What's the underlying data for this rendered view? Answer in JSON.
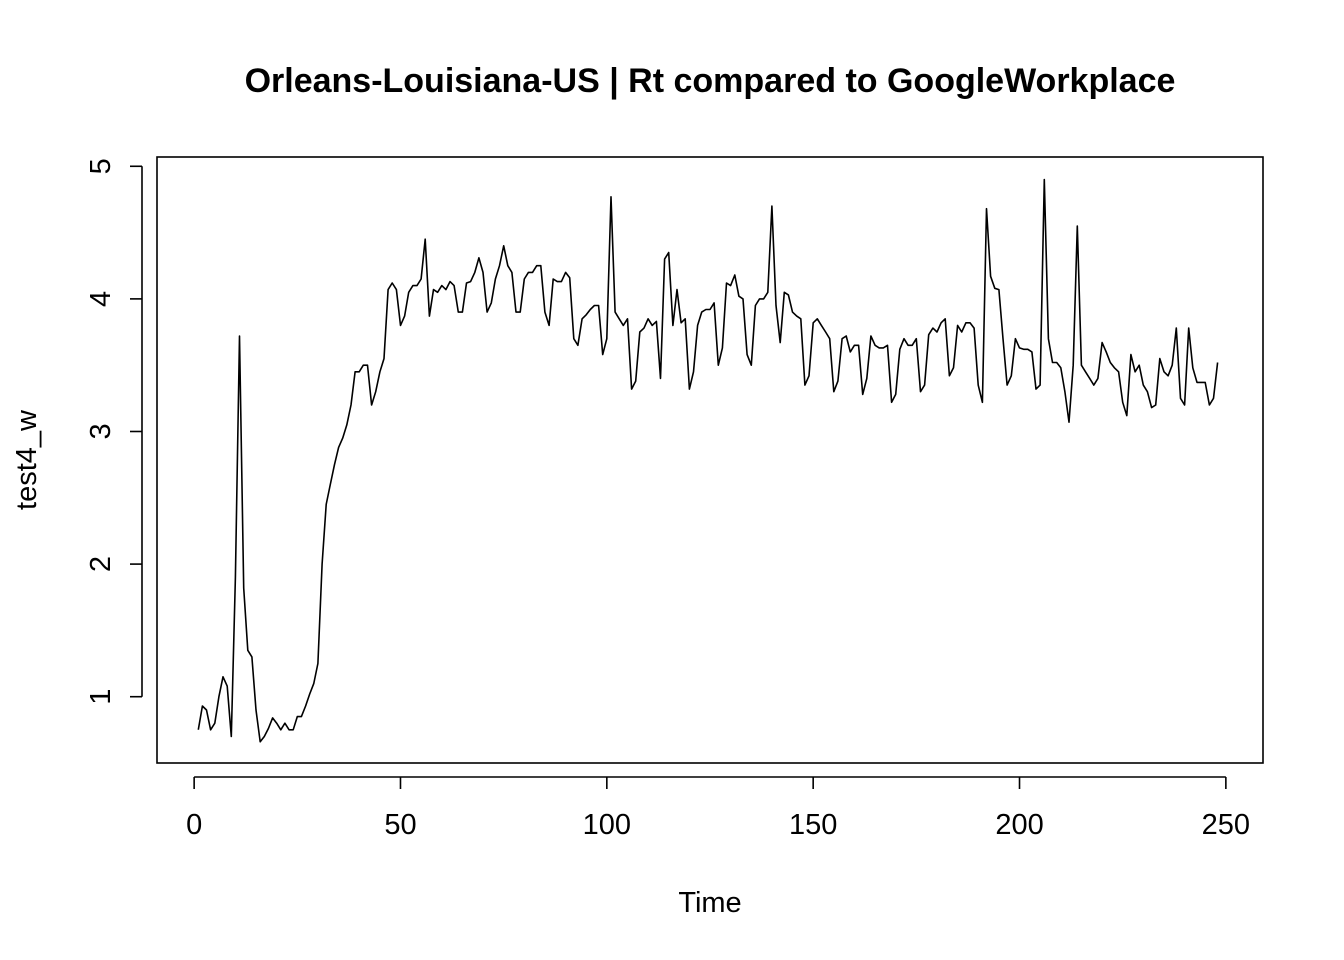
{
  "chart_data": {
    "type": "line",
    "title": "Orleans-Louisiana-US | Rt compared to GoogleWorkplace",
    "xlabel": "Time",
    "ylabel": "test4_w",
    "xlim": [
      -9,
      259
    ],
    "ylim": [
      0.5,
      5.07
    ],
    "xticks": [
      0,
      50,
      100,
      150,
      200,
      250
    ],
    "yticks": [
      1,
      2,
      3,
      4,
      5
    ],
    "grid": false,
    "legend": "none",
    "series": [
      {
        "color": "#000000",
        "x": [
          1,
          2,
          3,
          4,
          5,
          6,
          7,
          8,
          9,
          10,
          11,
          12,
          13,
          14,
          15,
          16,
          17,
          18,
          19,
          20,
          21,
          22,
          23,
          24,
          25,
          26,
          27,
          28,
          29,
          30,
          31,
          32,
          33,
          34,
          35,
          36,
          37,
          38,
          39,
          40,
          41,
          42,
          43,
          44,
          45,
          46,
          47,
          48,
          49,
          50,
          51,
          52,
          53,
          54,
          55,
          56,
          57,
          58,
          59,
          60,
          61,
          62,
          63,
          64,
          65,
          66,
          67,
          68,
          69,
          70,
          71,
          72,
          73,
          74,
          75,
          76,
          77,
          78,
          79,
          80,
          81,
          82,
          83,
          84,
          85,
          86,
          87,
          88,
          89,
          90,
          91,
          92,
          93,
          94,
          95,
          96,
          97,
          98,
          99,
          100,
          101,
          102,
          103,
          104,
          105,
          106,
          107,
          108,
          109,
          110,
          111,
          112,
          113,
          114,
          115,
          116,
          117,
          118,
          119,
          120,
          121,
          122,
          123,
          124,
          125,
          126,
          127,
          128,
          129,
          130,
          131,
          132,
          133,
          134,
          135,
          136,
          137,
          138,
          139,
          140,
          141,
          142,
          143,
          144,
          145,
          146,
          147,
          148,
          149,
          150,
          151,
          152,
          153,
          154,
          155,
          156,
          157,
          158,
          159,
          160,
          161,
          162,
          163,
          164,
          165,
          166,
          167,
          168,
          169,
          170,
          171,
          172,
          173,
          174,
          175,
          176,
          177,
          178,
          179,
          180,
          181,
          182,
          183,
          184,
          185,
          186,
          187,
          188,
          189,
          190,
          191,
          192,
          193,
          194,
          195,
          196,
          197,
          198,
          199,
          200,
          201,
          202,
          203,
          204,
          205,
          206,
          207,
          208,
          209,
          210,
          211,
          212,
          213,
          214,
          215,
          216,
          217,
          218,
          219,
          220,
          221,
          222,
          223,
          224,
          225,
          226,
          227,
          228,
          229,
          230,
          231,
          232,
          233,
          234,
          235,
          236,
          237,
          238,
          239,
          240,
          241,
          242,
          243,
          244,
          245,
          246,
          247,
          248
        ],
        "y": [
          0.75,
          0.93,
          0.9,
          0.75,
          0.8,
          1.0,
          1.15,
          1.08,
          0.7,
          1.9,
          3.72,
          1.82,
          1.35,
          1.3,
          0.9,
          0.66,
          0.7,
          0.76,
          0.84,
          0.8,
          0.75,
          0.8,
          0.75,
          0.75,
          0.85,
          0.85,
          0.93,
          1.02,
          1.1,
          1.25,
          2.0,
          2.45,
          2.6,
          2.75,
          2.88,
          2.95,
          3.05,
          3.2,
          3.45,
          3.45,
          3.5,
          3.5,
          3.2,
          3.3,
          3.45,
          3.55,
          4.07,
          4.12,
          4.07,
          3.8,
          3.87,
          4.05,
          4.1,
          4.1,
          4.15,
          4.45,
          3.87,
          4.07,
          4.05,
          4.1,
          4.07,
          4.13,
          4.1,
          3.9,
          3.9,
          4.12,
          4.13,
          4.2,
          4.31,
          4.2,
          3.9,
          3.97,
          4.15,
          4.25,
          4.4,
          4.25,
          4.2,
          3.9,
          3.9,
          4.15,
          4.2,
          4.2,
          4.25,
          4.25,
          3.9,
          3.8,
          4.15,
          4.13,
          4.13,
          4.2,
          4.16,
          3.7,
          3.65,
          3.85,
          3.88,
          3.92,
          3.95,
          3.95,
          3.58,
          3.7,
          4.77,
          3.9,
          3.85,
          3.8,
          3.85,
          3.32,
          3.38,
          3.75,
          3.78,
          3.85,
          3.8,
          3.83,
          3.4,
          4.3,
          4.35,
          3.8,
          4.07,
          3.82,
          3.85,
          3.32,
          3.45,
          3.8,
          3.9,
          3.92,
          3.92,
          3.97,
          3.5,
          3.63,
          4.12,
          4.1,
          4.18,
          4.02,
          4.0,
          3.58,
          3.5,
          3.95,
          4.0,
          4.0,
          4.05,
          4.7,
          3.95,
          3.67,
          4.05,
          4.03,
          3.9,
          3.87,
          3.85,
          3.35,
          3.42,
          3.82,
          3.85,
          3.8,
          3.75,
          3.7,
          3.3,
          3.38,
          3.7,
          3.72,
          3.6,
          3.65,
          3.65,
          3.28,
          3.4,
          3.72,
          3.65,
          3.63,
          3.63,
          3.65,
          3.22,
          3.28,
          3.62,
          3.7,
          3.65,
          3.65,
          3.7,
          3.3,
          3.35,
          3.73,
          3.78,
          3.75,
          3.82,
          3.85,
          3.42,
          3.48,
          3.8,
          3.75,
          3.82,
          3.82,
          3.78,
          3.35,
          3.22,
          4.68,
          4.17,
          4.08,
          4.07,
          3.7,
          3.35,
          3.42,
          3.7,
          3.63,
          3.62,
          3.62,
          3.6,
          3.32,
          3.35,
          4.9,
          3.7,
          3.52,
          3.52,
          3.48,
          3.3,
          3.07,
          3.5,
          4.55,
          3.5,
          3.45,
          3.4,
          3.35,
          3.4,
          3.67,
          3.6,
          3.52,
          3.48,
          3.45,
          3.22,
          3.12,
          3.58,
          3.45,
          3.5,
          3.35,
          3.3,
          3.18,
          3.2,
          3.55,
          3.45,
          3.42,
          3.5,
          3.78,
          3.25,
          3.2,
          3.78,
          3.48,
          3.37,
          3.37,
          3.37,
          3.2,
          3.25,
          3.52
        ]
      }
    ]
  }
}
